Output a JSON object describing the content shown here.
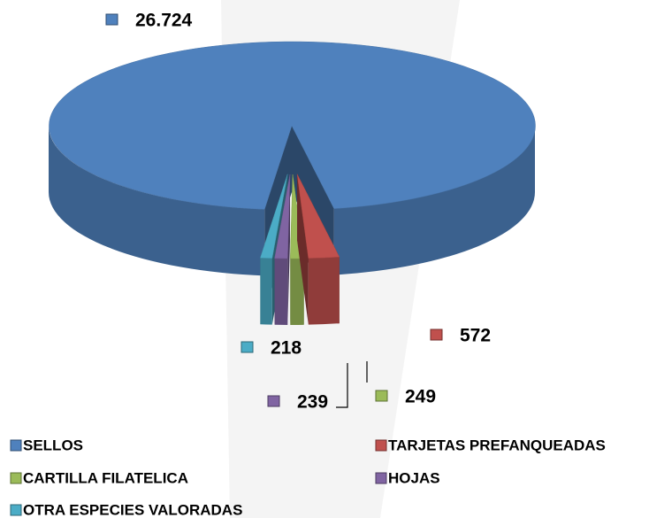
{
  "chart_data": {
    "type": "pie3d",
    "categories": [
      "SELLOS",
      "TARJETAS PREFANQUEADAS",
      "CARTILLA FILATELICA",
      "HOJAS",
      "OTRA ESPECIES VALORADAS"
    ],
    "values": [
      26724,
      572,
      249,
      239,
      218
    ],
    "value_labels": [
      "26.724",
      "572",
      "249",
      "239",
      "218"
    ],
    "colors": [
      "#4f81bd",
      "#c0504d",
      "#9bbb59",
      "#8064a2",
      "#4bacc6"
    ],
    "legend": "bottom"
  }
}
